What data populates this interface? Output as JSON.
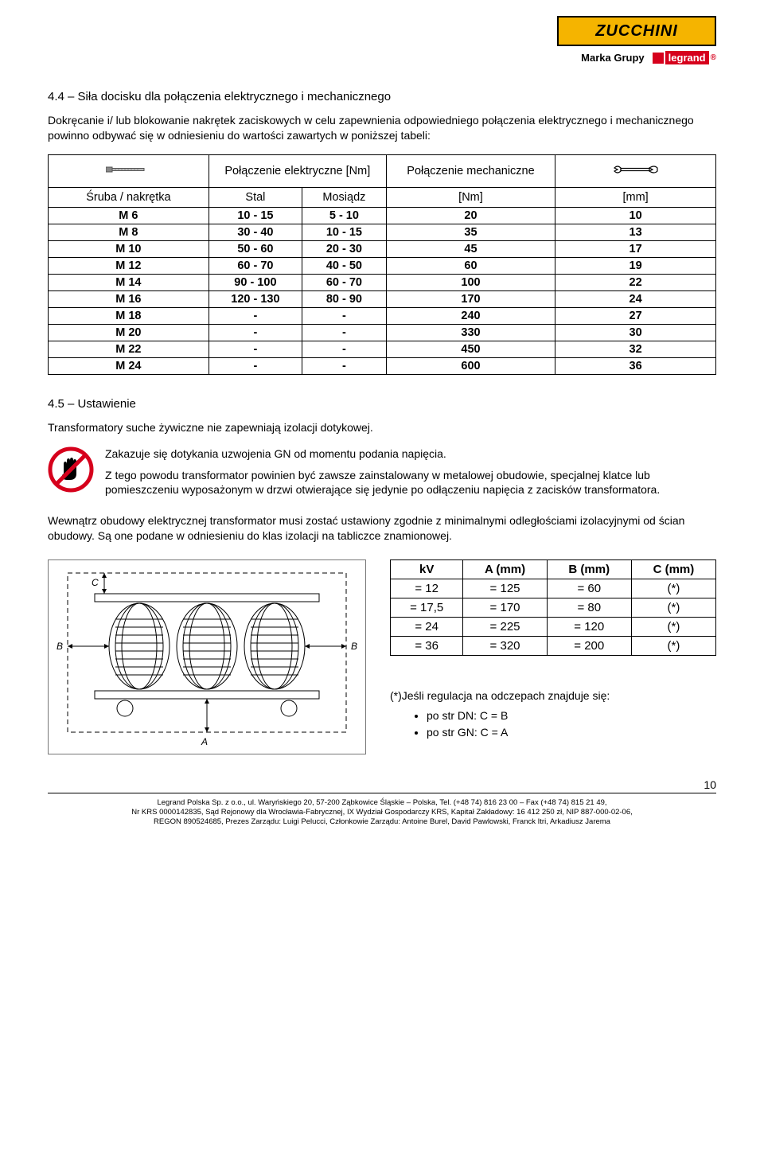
{
  "header": {
    "brand": "ZUCCHINI",
    "group_label": "Marka Grupy",
    "legrand": "legrand"
  },
  "section44": {
    "title": "4.4 – Siła docisku dla połączenia elektrycznego i mechanicznego",
    "intro": "Dokręcanie i/ lub blokowanie nakrętek zaciskowych w celu zapewnienia odpowiedniego połączenia elektrycznego i mechanicznego powinno odbywać się w odniesieniu do wartości zawartych w poniższej tabeli:"
  },
  "torque_table": {
    "hdr_elec": "Połączenie elektryczne [Nm]",
    "hdr_mech": "Połączenie mechaniczne",
    "sub_label": "Śruba / nakrętka",
    "sub_stal": "Stal",
    "sub_mos": "Mosiądz",
    "sub_nm": "[Nm]",
    "sub_mm": "[mm]",
    "rows": [
      {
        "m": "M 6",
        "s": "10 - 15",
        "b": "5 - 10",
        "nm": "20",
        "mm": "10"
      },
      {
        "m": "M 8",
        "s": "30 - 40",
        "b": "10 - 15",
        "nm": "35",
        "mm": "13"
      },
      {
        "m": "M 10",
        "s": "50 - 60",
        "b": "20 - 30",
        "nm": "45",
        "mm": "17"
      },
      {
        "m": "M 12",
        "s": "60 - 70",
        "b": "40 - 50",
        "nm": "60",
        "mm": "19"
      },
      {
        "m": "M 14",
        "s": "90 - 100",
        "b": "60 - 70",
        "nm": "100",
        "mm": "22"
      },
      {
        "m": "M 16",
        "s": "120 - 130",
        "b": "80 - 90",
        "nm": "170",
        "mm": "24"
      },
      {
        "m": "M 18",
        "s": "-",
        "b": "-",
        "nm": "240",
        "mm": "27"
      },
      {
        "m": "M 20",
        "s": "-",
        "b": "-",
        "nm": "330",
        "mm": "30"
      },
      {
        "m": "M 22",
        "s": "-",
        "b": "-",
        "nm": "450",
        "mm": "32"
      },
      {
        "m": "M 24",
        "s": "-",
        "b": "-",
        "nm": "600",
        "mm": "36"
      }
    ]
  },
  "section45": {
    "title": "4.5 – Ustawienie",
    "p1": "Transformatory suche żywiczne nie zapewniają izolacji dotykowej.",
    "warn1": "Zakazuje się dotykania uzwojenia GN od momentu podania napięcia.",
    "warn2": "Z tego powodu transformator powinien być zawsze zainstalowany w metalowej obudowie, specjalnej klatce lub pomieszczeniu wyposażonym w drzwi otwierające się jedynie po odłączeniu napięcia z zacisków transformatora.",
    "p2": "Wewnątrz obudowy elektrycznej transformator musi zostać ustawiony zgodnie z  minimalnymi odległościami izolacyjnymi od ścian obudowy. Są one podane w odniesieniu do klas izolacji na tabliczce znamionowej."
  },
  "clearance_table": {
    "headers": [
      "kV",
      "A (mm)",
      "B (mm)",
      "C (mm)"
    ],
    "rows": [
      {
        "k": "= 12",
        "a": "= 125",
        "b": "= 60",
        "c": "(*)"
      },
      {
        "k": "= 17,5",
        "a": "= 170",
        "b": "= 80",
        "c": "(*)"
      },
      {
        "k": "= 24",
        "a": "= 225",
        "b": "= 120",
        "c": "(*)"
      },
      {
        "k": "= 36",
        "a": "= 320",
        "b": "= 200",
        "c": "(*)"
      }
    ]
  },
  "footnote": {
    "lead": "(*)Jeśli regulacja na odczepach znajduje się:",
    "b1": "po str DN: C = B",
    "b2": "po str GN: C = A"
  },
  "page_number": "10",
  "footer": {
    "l1": "Legrand Polska Sp. z o.o., ul. Waryńskiego 20, 57-200 Ząbkowice Śląskie – Polska, Tel. (+48 74) 816 23 00 – Fax (+48 74) 815 21 49,",
    "l2": "Nr KRS 0000142835, Sąd Rejonowy dla Wrocławia-Fabrycznej, IX Wydział Gospodarczy KRS, Kapitał Zakładowy: 16 412 250 zł, NIP 887-000-02-06,",
    "l3": "REGON 890524685, Prezes Zarządu: Luigi Pelucci, Członkowie Zarządu: Antoine Burel, David Pawlowski, Franck Itri, Arkadiusz Jarema"
  },
  "colors": {
    "brand_yellow": "#f5b400",
    "legrand_red": "#d6001c",
    "text": "#000000",
    "bg": "#ffffff",
    "border": "#000000"
  }
}
